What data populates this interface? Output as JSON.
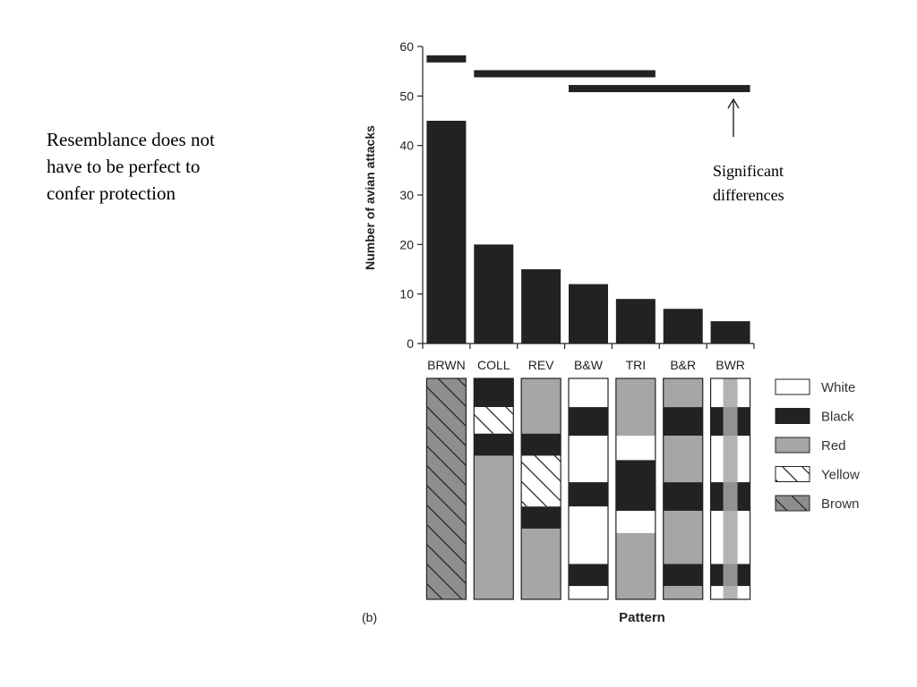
{
  "caption": {
    "lines": [
      "Resemblance does not",
      "have to be perfect to",
      "confer protection"
    ]
  },
  "annotation": {
    "lines": [
      "Significant",
      "differences"
    ]
  },
  "panel_label": "(b)",
  "colors": {
    "bar": "#222222",
    "White": "#ffffff",
    "Black": "#222222",
    "Red": "#a6a6a6",
    "Yellow": "#ffffff",
    "Brown": "#8e8e8e",
    "stroke": "#222222"
  },
  "chart_data": {
    "type": "bar",
    "categories": [
      "BRWN",
      "COLL",
      "REV",
      "B&W",
      "TRI",
      "B&R",
      "BWR"
    ],
    "values": [
      45,
      20,
      15,
      12,
      9,
      7,
      4.5
    ],
    "title": "",
    "xlabel": "Pattern",
    "ylabel": "Number of avian attacks",
    "ylim": [
      0,
      60
    ],
    "yticks": [
      0,
      10,
      20,
      30,
      40,
      50,
      60
    ],
    "significance_bars": [
      {
        "from": "BRWN",
        "to": "BRWN",
        "y": 57.5
      },
      {
        "from": "COLL",
        "to": "TRI",
        "y": 54.5
      },
      {
        "from": "B&W",
        "to": "BWR",
        "y": 51.5
      }
    ],
    "legend": [
      "White",
      "Black",
      "Red",
      "Yellow",
      "Brown"
    ],
    "pattern_bands": [
      {
        "category": "BRWN",
        "bands": [
          {
            "color": "Brown",
            "start": 0,
            "end": 1
          }
        ]
      },
      {
        "category": "COLL",
        "bands": [
          {
            "color": "Black",
            "start": 0,
            "end": 0.13
          },
          {
            "color": "Yellow",
            "start": 0.13,
            "end": 0.25
          },
          {
            "color": "Black",
            "start": 0.25,
            "end": 0.35
          },
          {
            "color": "Red",
            "start": 0.35,
            "end": 1
          }
        ]
      },
      {
        "category": "REV",
        "bands": [
          {
            "color": "Red",
            "start": 0,
            "end": 0.25
          },
          {
            "color": "Black",
            "start": 0.25,
            "end": 0.35
          },
          {
            "color": "Yellow",
            "start": 0.35,
            "end": 0.58
          },
          {
            "color": "Black",
            "start": 0.58,
            "end": 0.68
          },
          {
            "color": "Red",
            "start": 0.68,
            "end": 1
          }
        ]
      },
      {
        "category": "B&W",
        "bands": [
          {
            "color": "White",
            "start": 0,
            "end": 0.13
          },
          {
            "color": "Black",
            "start": 0.13,
            "end": 0.26
          },
          {
            "color": "White",
            "start": 0.26,
            "end": 0.47
          },
          {
            "color": "Black",
            "start": 0.47,
            "end": 0.58
          },
          {
            "color": "White",
            "start": 0.58,
            "end": 0.84
          },
          {
            "color": "Black",
            "start": 0.84,
            "end": 0.94
          },
          {
            "color": "White",
            "start": 0.94,
            "end": 1
          }
        ]
      },
      {
        "category": "TRI",
        "bands": [
          {
            "color": "Red",
            "start": 0,
            "end": 0.26
          },
          {
            "color": "White",
            "start": 0.26,
            "end": 0.37
          },
          {
            "color": "Black",
            "start": 0.37,
            "end": 0.6
          },
          {
            "color": "White",
            "start": 0.6,
            "end": 0.7
          },
          {
            "color": "Red",
            "start": 0.7,
            "end": 1
          }
        ]
      },
      {
        "category": "B&R",
        "bands": [
          {
            "color": "Red",
            "start": 0,
            "end": 0.13
          },
          {
            "color": "Black",
            "start": 0.13,
            "end": 0.26
          },
          {
            "color": "Red",
            "start": 0.26,
            "end": 0.47
          },
          {
            "color": "Black",
            "start": 0.47,
            "end": 0.6
          },
          {
            "color": "Red",
            "start": 0.6,
            "end": 0.84
          },
          {
            "color": "Black",
            "start": 0.84,
            "end": 0.94
          },
          {
            "color": "Red",
            "start": 0.94,
            "end": 1
          }
        ]
      },
      {
        "category": "BWR",
        "bands": [
          {
            "color": "White",
            "start": 0,
            "end": 0.13
          },
          {
            "color": "Black",
            "start": 0.13,
            "end": 0.26
          },
          {
            "color": "White",
            "start": 0.26,
            "end": 0.47
          },
          {
            "color": "Black",
            "start": 0.47,
            "end": 0.6
          },
          {
            "color": "White",
            "start": 0.6,
            "end": 0.84
          },
          {
            "color": "Black",
            "start": 0.84,
            "end": 0.94
          },
          {
            "color": "White",
            "start": 0.94,
            "end": 1
          }
        ],
        "stripe": "Red"
      }
    ]
  }
}
